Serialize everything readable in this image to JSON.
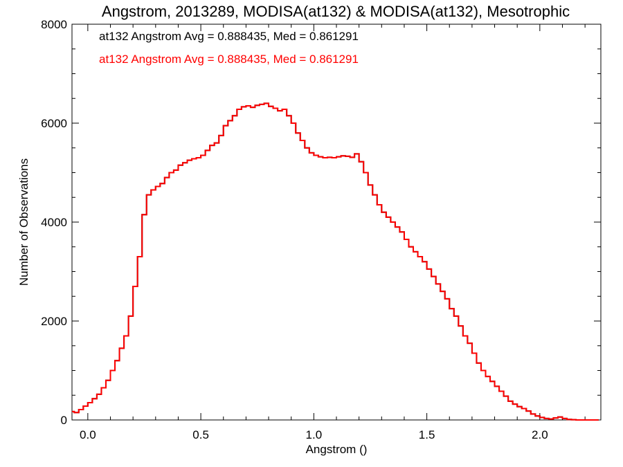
{
  "chart_data": {
    "type": "line",
    "title": "Angstrom, 2013289, MODISA(at132) & MODISA(at132), Mesotrophic",
    "xlabel": "Angstrom ()",
    "ylabel": "Number of Observations",
    "xlim": [
      -0.07,
      2.27
    ],
    "ylim": [
      0,
      8000
    ],
    "xticks": [
      0.0,
      0.5,
      1.0,
      1.5,
      2.0
    ],
    "xtick_labels": [
      "0.0",
      "0.5",
      "1.0",
      "1.5",
      "2.0"
    ],
    "yticks": [
      0,
      2000,
      4000,
      6000,
      8000
    ],
    "ytick_labels": [
      "0",
      "2000",
      "4000",
      "6000",
      "8000"
    ],
    "grid": false,
    "step": true,
    "annotations": [
      {
        "text": "at132 Angstrom Avg = 0.888435, Med = 0.861291",
        "color": "#000000"
      },
      {
        "text": "at132 Angstrom Avg = 0.888435, Med = 0.861291",
        "color": "#ff0000"
      }
    ],
    "series": [
      {
        "color": "#000000",
        "x": [
          -0.07,
          -0.05,
          -0.03,
          -0.01,
          0.01,
          0.03,
          0.05,
          0.07,
          0.09,
          0.11,
          0.13,
          0.15,
          0.17,
          0.19,
          0.21,
          0.23,
          0.25,
          0.27,
          0.29,
          0.31,
          0.33,
          0.35,
          0.37,
          0.39,
          0.41,
          0.43,
          0.45,
          0.47,
          0.49,
          0.51,
          0.53,
          0.55,
          0.57,
          0.59,
          0.61,
          0.63,
          0.65,
          0.67,
          0.69,
          0.71,
          0.73,
          0.75,
          0.77,
          0.79,
          0.81,
          0.83,
          0.85,
          0.87,
          0.89,
          0.91,
          0.93,
          0.95,
          0.97,
          0.99,
          1.01,
          1.03,
          1.05,
          1.07,
          1.09,
          1.11,
          1.13,
          1.15,
          1.17,
          1.19,
          1.21,
          1.23,
          1.25,
          1.27,
          1.29,
          1.31,
          1.33,
          1.35,
          1.37,
          1.39,
          1.41,
          1.43,
          1.45,
          1.47,
          1.49,
          1.51,
          1.53,
          1.55,
          1.57,
          1.59,
          1.61,
          1.63,
          1.65,
          1.67,
          1.69,
          1.71,
          1.73,
          1.75,
          1.77,
          1.79,
          1.81,
          1.83,
          1.85,
          1.87,
          1.89,
          1.91,
          1.93,
          1.95,
          1.97,
          1.99,
          2.01,
          2.03,
          2.05,
          2.07,
          2.09,
          2.11,
          2.13,
          2.15,
          2.17,
          2.19,
          2.21,
          2.23,
          2.25
        ],
        "values": [
          170,
          150,
          210,
          280,
          350,
          430,
          520,
          650,
          800,
          1000,
          1200,
          1450,
          1700,
          2100,
          2700,
          3300,
          4150,
          4550,
          4650,
          4720,
          4780,
          4900,
          5000,
          5050,
          5150,
          5200,
          5250,
          5280,
          5300,
          5350,
          5450,
          5550,
          5600,
          5750,
          5950,
          6050,
          6150,
          6280,
          6330,
          6350,
          6320,
          6360,
          6380,
          6400,
          6340,
          6300,
          6250,
          6280,
          6150,
          6000,
          5800,
          5650,
          5500,
          5400,
          5350,
          5320,
          5300,
          5310,
          5300,
          5320,
          5340,
          5330,
          5310,
          5380,
          5220,
          5000,
          4750,
          4550,
          4350,
          4200,
          4100,
          4000,
          3900,
          3800,
          3650,
          3500,
          3400,
          3300,
          3200,
          3050,
          2900,
          2750,
          2600,
          2450,
          2250,
          2100,
          1900,
          1700,
          1550,
          1350,
          1150,
          1000,
          880,
          780,
          680,
          580,
          480,
          380,
          320,
          270,
          230,
          180,
          120,
          80,
          50,
          30,
          20,
          40,
          60,
          30,
          10,
          5,
          0,
          0,
          0,
          0,
          0
        ]
      },
      {
        "color": "#ff0000",
        "x": [
          -0.07,
          -0.05,
          -0.03,
          -0.01,
          0.01,
          0.03,
          0.05,
          0.07,
          0.09,
          0.11,
          0.13,
          0.15,
          0.17,
          0.19,
          0.21,
          0.23,
          0.25,
          0.27,
          0.29,
          0.31,
          0.33,
          0.35,
          0.37,
          0.39,
          0.41,
          0.43,
          0.45,
          0.47,
          0.49,
          0.51,
          0.53,
          0.55,
          0.57,
          0.59,
          0.61,
          0.63,
          0.65,
          0.67,
          0.69,
          0.71,
          0.73,
          0.75,
          0.77,
          0.79,
          0.81,
          0.83,
          0.85,
          0.87,
          0.89,
          0.91,
          0.93,
          0.95,
          0.97,
          0.99,
          1.01,
          1.03,
          1.05,
          1.07,
          1.09,
          1.11,
          1.13,
          1.15,
          1.17,
          1.19,
          1.21,
          1.23,
          1.25,
          1.27,
          1.29,
          1.31,
          1.33,
          1.35,
          1.37,
          1.39,
          1.41,
          1.43,
          1.45,
          1.47,
          1.49,
          1.51,
          1.53,
          1.55,
          1.57,
          1.59,
          1.61,
          1.63,
          1.65,
          1.67,
          1.69,
          1.71,
          1.73,
          1.75,
          1.77,
          1.79,
          1.81,
          1.83,
          1.85,
          1.87,
          1.89,
          1.91,
          1.93,
          1.95,
          1.97,
          1.99,
          2.01,
          2.03,
          2.05,
          2.07,
          2.09,
          2.11,
          2.13,
          2.15,
          2.17,
          2.19,
          2.21,
          2.23,
          2.25
        ],
        "values": [
          170,
          150,
          210,
          280,
          350,
          430,
          520,
          650,
          800,
          1000,
          1200,
          1450,
          1700,
          2100,
          2700,
          3300,
          4150,
          4550,
          4650,
          4720,
          4780,
          4900,
          5000,
          5050,
          5150,
          5200,
          5250,
          5280,
          5300,
          5350,
          5450,
          5550,
          5600,
          5750,
          5950,
          6050,
          6150,
          6280,
          6330,
          6350,
          6320,
          6360,
          6380,
          6400,
          6340,
          6300,
          6250,
          6280,
          6150,
          6000,
          5800,
          5650,
          5500,
          5400,
          5350,
          5320,
          5300,
          5310,
          5300,
          5320,
          5340,
          5330,
          5310,
          5380,
          5220,
          5000,
          4750,
          4550,
          4350,
          4200,
          4100,
          4000,
          3900,
          3800,
          3650,
          3500,
          3400,
          3300,
          3200,
          3050,
          2900,
          2750,
          2600,
          2450,
          2250,
          2100,
          1900,
          1700,
          1550,
          1350,
          1150,
          1000,
          880,
          780,
          680,
          580,
          480,
          380,
          320,
          270,
          230,
          180,
          120,
          80,
          50,
          30,
          20,
          40,
          60,
          30,
          10,
          5,
          0,
          0,
          0,
          0,
          0
        ]
      }
    ]
  }
}
